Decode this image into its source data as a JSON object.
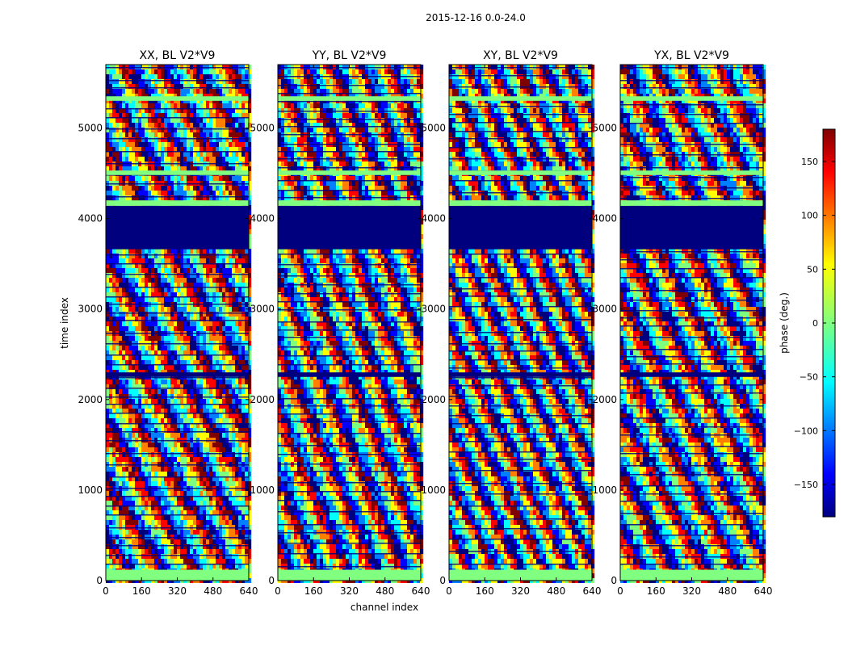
{
  "chart_data": {
    "type": "heatmap",
    "suptitle": "2015-12-16 0.0-24.0",
    "xlabel": "channel index",
    "ylabel": "time index",
    "xlim": [
      0,
      640
    ],
    "ylim": [
      0,
      5700
    ],
    "xticks": [
      "0",
      "160",
      "320",
      "480",
      "640"
    ],
    "yticks": [
      "0",
      "1000",
      "2000",
      "3000",
      "4000",
      "5000"
    ],
    "xtick_values": [
      0,
      160,
      320,
      480,
      640
    ],
    "ytick_values": [
      0,
      1000,
      2000,
      3000,
      4000,
      5000
    ],
    "flagged_time_ranges": [
      [
        3660,
        4140
      ]
    ],
    "panels": [
      {
        "title": "XX, BL V2*V9",
        "band_slope": 0.9,
        "band_period": 38
      },
      {
        "title": "YY, BL V2*V9",
        "band_slope": 1.3,
        "band_period": 46
      },
      {
        "title": "XY, BL V2*V9",
        "band_slope": 1.1,
        "band_period": 34
      },
      {
        "title": "YX, BL V2*V9",
        "band_slope": 1.0,
        "band_period": 40
      }
    ],
    "colorbar": {
      "label": "phase (deg.)",
      "range": [
        -180,
        180
      ],
      "ticks": [
        "150",
        "100",
        "50",
        "0",
        "−50",
        "−100",
        "−150"
      ],
      "tick_values": [
        150,
        100,
        50,
        0,
        -50,
        -100,
        -150
      ],
      "colormap": "jet"
    }
  },
  "colors": {
    "jet": [
      "#00007f",
      "#0000ff",
      "#007fff",
      "#00ffff",
      "#7fff7f",
      "#ffff00",
      "#ff7f00",
      "#ff0000",
      "#7f0000"
    ],
    "flag": "#00007f",
    "base": "#80ff80"
  }
}
